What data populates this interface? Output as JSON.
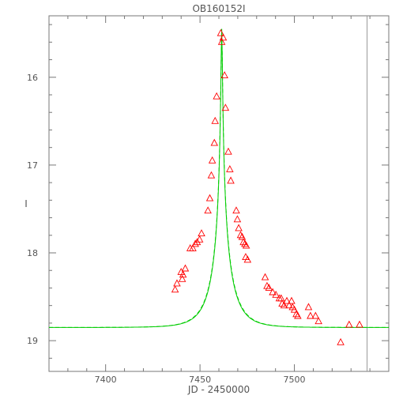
{
  "chart_data": {
    "type": "scatter",
    "title": "OB160152I",
    "xlabel": "JD - 2450000",
    "ylabel": "I",
    "xlim": [
      7370,
      7550
    ],
    "ylim": [
      19.35,
      15.3
    ],
    "y_inverted": true,
    "x_ticks": [
      7400,
      7450,
      7500
    ],
    "y_ticks": [
      16,
      17,
      18,
      19
    ],
    "x_minor_step": 10,
    "y_minor_step": 0.2,
    "grid": false,
    "vertical_line_x": 7538.5,
    "series": [
      {
        "marker": "triangle",
        "color": "#ff0000",
        "x": [
          7461.0,
          7461.5,
          7462.3,
          7463.0,
          7463.5,
          7458.8,
          7458.0,
          7457.6,
          7465.0,
          7465.8,
          7466.3,
          7456.5,
          7456.0,
          7455.2,
          7454.2,
          7469.2,
          7469.8,
          7470.5,
          7471.5,
          7472.3,
          7473.0,
          7473.8,
          7474.5,
          7474.2,
          7475.2,
          7450.8,
          7449.8,
          7448.5,
          7447.5,
          7446.2,
          7444.8,
          7442.2,
          7441.0,
          7440.6,
          7440.0,
          7437.8,
          7436.8,
          7484.5,
          7485.5,
          7486.5,
          7488.5,
          7490.2,
          7492.0,
          7493.0,
          7493.5,
          7494.5,
          7496.0,
          7497.2,
          7498.5,
          7499.0,
          7500.0,
          7501.0,
          7501.8,
          7507.5,
          7508.5,
          7511.2,
          7512.8,
          7529.0,
          7524.5,
          7534.5
        ],
        "y": [
          15.5,
          15.6,
          15.55,
          15.98,
          16.35,
          16.22,
          16.5,
          16.75,
          16.85,
          17.05,
          17.18,
          16.95,
          17.12,
          17.38,
          17.52,
          17.52,
          17.62,
          17.72,
          17.8,
          17.82,
          17.88,
          17.9,
          17.92,
          18.05,
          18.08,
          17.78,
          17.85,
          17.88,
          17.9,
          17.95,
          17.95,
          18.18,
          18.25,
          18.3,
          18.22,
          18.35,
          18.42,
          18.28,
          18.38,
          18.4,
          18.45,
          18.48,
          18.52,
          18.52,
          18.58,
          18.6,
          18.55,
          18.6,
          18.55,
          18.62,
          18.65,
          18.7,
          18.72,
          18.62,
          18.72,
          18.72,
          18.78,
          18.82,
          19.02,
          18.82
        ]
      },
      {
        "marker": "line",
        "color": "#00cc00",
        "style": "solid",
        "model": {
          "t0": 7461.5,
          "tE": 11.0,
          "peak": 15.45,
          "base": 18.85,
          "u0": 0.0275
        }
      },
      {
        "marker": "line",
        "color": "#00cc00",
        "style": "dashed",
        "model": {
          "t0": 7461.5,
          "tE": 11.3,
          "peak": 15.45,
          "base": 18.85,
          "u0": 0.0275
        }
      }
    ]
  }
}
